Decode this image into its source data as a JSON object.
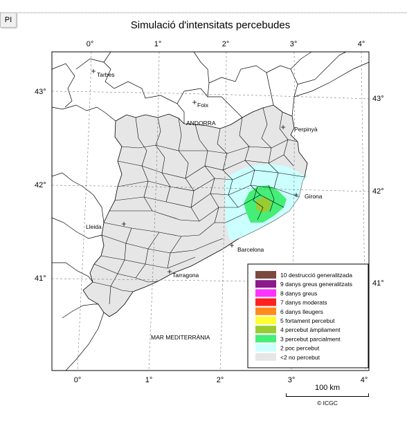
{
  "button": {
    "label": "PI"
  },
  "title": "Simulació d'intensitats percebudes",
  "axes": {
    "top_lon": [
      "0°",
      "1°",
      "2°",
      "3°",
      "4°"
    ],
    "bottom_lon": [
      "0°",
      "1°",
      "2°",
      "3°",
      "4°"
    ],
    "left_lat": [
      "43°",
      "42°",
      "41°"
    ],
    "right_lat": [
      "43°",
      "42°",
      "41°"
    ]
  },
  "places": {
    "tarbes": "Tarbes",
    "foix": "Foix",
    "andorra": "ANDORRA",
    "perpinya": "Perpinyà",
    "girona": "Girona",
    "lleida": "Lleida",
    "barcelona": "Barcelona",
    "tarragona": "Tarragona",
    "sea": "MAR MEDITERRÀNIA"
  },
  "legend": [
    {
      "label": "10 destrucció generalitzada",
      "color": "#7b4a3e"
    },
    {
      "label": "9 danys greus generalitzats",
      "color": "#8b1a8b"
    },
    {
      "label": "8 danys greus",
      "color": "#ff33ff"
    },
    {
      "label": "7 danys moderats",
      "color": "#ff2020"
    },
    {
      "label": "6 danys lleugers",
      "color": "#ff8c1a"
    },
    {
      "label": "5 fortament percebut",
      "color": "#ffff33"
    },
    {
      "label": "4 percebut àmpliament",
      "color": "#99cc33"
    },
    {
      "label": "3 percebut parcialment",
      "color": "#44ee77"
    },
    {
      "label": "2 poc percebut",
      "color": "#ccffff"
    },
    {
      "label": "<2 no percebut",
      "color": "#e6e6e6"
    }
  ],
  "scale": {
    "label": "100 km"
  },
  "credit": "© ICGC"
}
